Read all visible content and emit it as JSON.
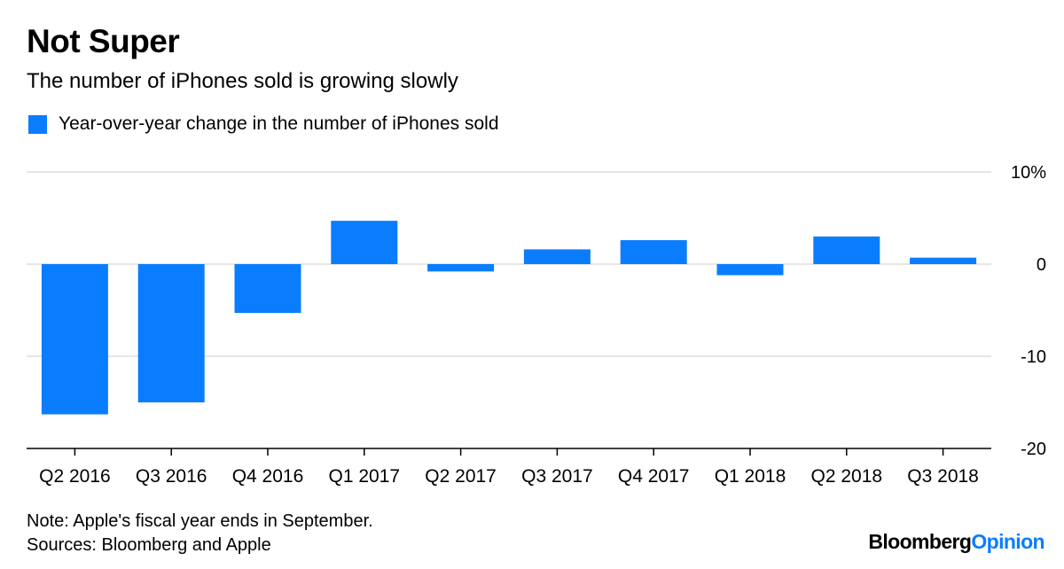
{
  "header": {
    "title": "Not Super",
    "subtitle": "The number of iPhones sold is growing slowly"
  },
  "chart_data": {
    "type": "bar",
    "categories": [
      "Q2 2016",
      "Q3 2016",
      "Q4 2016",
      "Q1 2017",
      "Q2 2017",
      "Q3 2017",
      "Q4 2017",
      "Q1 2018",
      "Q2 2018",
      "Q3 2018"
    ],
    "series": [
      {
        "name": "Year-over-year change in the number of iPhones sold",
        "values": [
          -16.3,
          -15.0,
          -5.3,
          4.7,
          -0.8,
          1.6,
          2.6,
          -1.2,
          3.0,
          0.7
        ],
        "color": "#0a7dff"
      }
    ],
    "yticks": [
      {
        "value": 10,
        "label": "10%"
      },
      {
        "value": 0,
        "label": "0"
      },
      {
        "value": -10,
        "label": "-10"
      },
      {
        "value": -20,
        "label": "-20"
      }
    ],
    "ylim": [
      -20,
      10
    ],
    "grid": true,
    "legend_position": "top-left",
    "colors": {
      "bar": "#0a7dff",
      "grid": "#e6e6e6",
      "axis": "#000000"
    }
  },
  "footer": {
    "note": "Note: Apple's fiscal year ends in September.",
    "sources": "Sources: Bloomberg and Apple",
    "brand_main": "Bloomberg",
    "brand_accent": "Opinion",
    "brand_accent_color": "#0a7dff"
  }
}
